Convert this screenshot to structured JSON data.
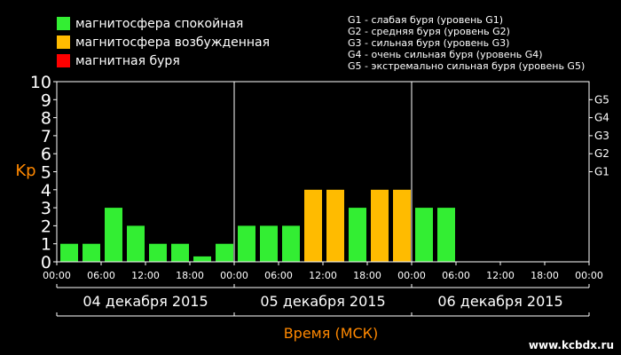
{
  "legend": [
    {
      "label": "магнитосфера спокойная",
      "color": "#33ee33"
    },
    {
      "label": "магнитосфера возбужденная",
      "color": "#ffbb00"
    },
    {
      "label": "магнитная буря",
      "color": "#ff0000"
    }
  ],
  "g_legend": [
    "G1 - слабая буря (уровень G1)",
    "G2 - средняя буря (уровень G2)",
    "G3 - сильная буря (уровень G3)",
    "G4 - очень сильная буря (уровень G4)",
    "G5 - экстремально сильная буря (уровень G5)"
  ],
  "watermark": "www.kcbdx.ru",
  "chart_data": {
    "type": "bar",
    "ylabel": "Kp",
    "xlabel": "Время (МСК)",
    "ylim": [
      0,
      10
    ],
    "yticks": [
      "0",
      "1",
      "2",
      "3",
      "4",
      "5",
      "6",
      "7",
      "8",
      "9",
      "10"
    ],
    "g_levels": [
      {
        "label": "G1",
        "value": 5
      },
      {
        "label": "G2",
        "value": 6
      },
      {
        "label": "G3",
        "value": 7
      },
      {
        "label": "G4",
        "value": 8
      },
      {
        "label": "G5",
        "value": 9
      }
    ],
    "x_tick_labels": [
      "00:00",
      "06:00",
      "12:00",
      "18:00",
      "00:00",
      "06:00",
      "12:00",
      "18:00",
      "00:00",
      "06:00",
      "12:00",
      "18:00",
      "00:00"
    ],
    "days": [
      "04 декабря 2015",
      "05 декабря 2015",
      "06 декабря 2015"
    ],
    "colors": {
      "quiet": "#33ee33",
      "active": "#ffbb00",
      "storm": "#ff0000",
      "axis_label": "#ff8800"
    },
    "values": [
      1,
      1,
      3,
      2,
      1,
      1,
      0.3,
      1,
      2,
      2,
      2,
      4,
      4,
      3,
      4,
      4,
      3,
      3
    ]
  }
}
